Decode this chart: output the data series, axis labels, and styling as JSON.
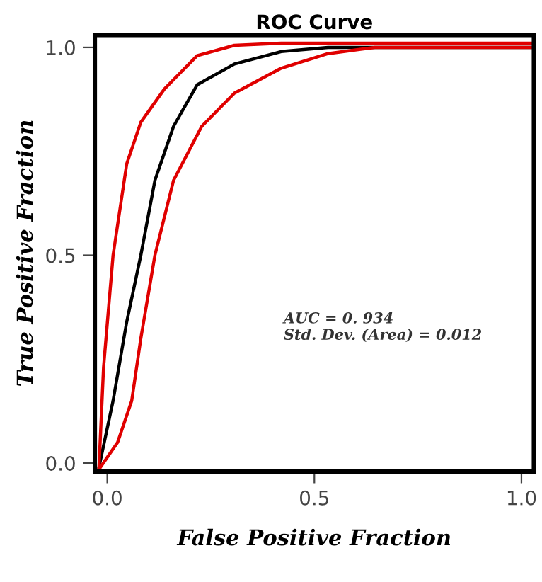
{
  "chart_data": {
    "type": "line",
    "title": "ROC Curve",
    "xlabel": "False Positive Fraction",
    "ylabel": "True Positive Fraction",
    "xlim": [
      -0.03,
      1.03
    ],
    "ylim": [
      -0.02,
      1.03
    ],
    "xticks": [
      {
        "value": 0,
        "label": "0.0"
      },
      0.5,
      {
        "value": 1,
        "label": "1.0"
      }
    ],
    "yticks": [
      {
        "value": 0,
        "label": "0.0"
      },
      0.5,
      {
        "value": 1,
        "label": "1.0"
      }
    ],
    "marker": "none",
    "line_style": "solid",
    "annotations": [
      "AUC = 0. 934\nStd. Dev. (Area) = 0.012"
    ],
    "series": [
      {
        "color": "#000000",
        "x": [
          -0.02,
          0.014,
          0.047,
          0.081,
          0.115,
          0.16,
          0.217,
          0.307,
          0.42,
          0.533,
          1.03
        ],
        "values": [
          -0.01,
          0.15,
          0.34,
          0.5,
          0.68,
          0.81,
          0.91,
          0.96,
          0.99,
          1.0,
          1.0
        ]
      },
      {
        "color": "#e00000",
        "x": [
          -0.02,
          -0.009,
          0.014,
          0.047,
          0.081,
          0.138,
          0.217,
          0.307,
          0.42,
          1.03
        ],
        "values": [
          -0.01,
          0.23,
          0.5,
          0.72,
          0.82,
          0.9,
          0.98,
          1.005,
          1.01,
          1.01
        ]
      },
      {
        "color": "#e00000",
        "x": [
          -0.02,
          0.025,
          0.059,
          0.081,
          0.115,
          0.16,
          0.228,
          0.307,
          0.42,
          0.533,
          0.646,
          1.03
        ],
        "values": [
          -0.015,
          0.05,
          0.15,
          0.3,
          0.5,
          0.68,
          0.81,
          0.89,
          0.95,
          0.985,
          1.0,
          1.0
        ]
      }
    ]
  }
}
